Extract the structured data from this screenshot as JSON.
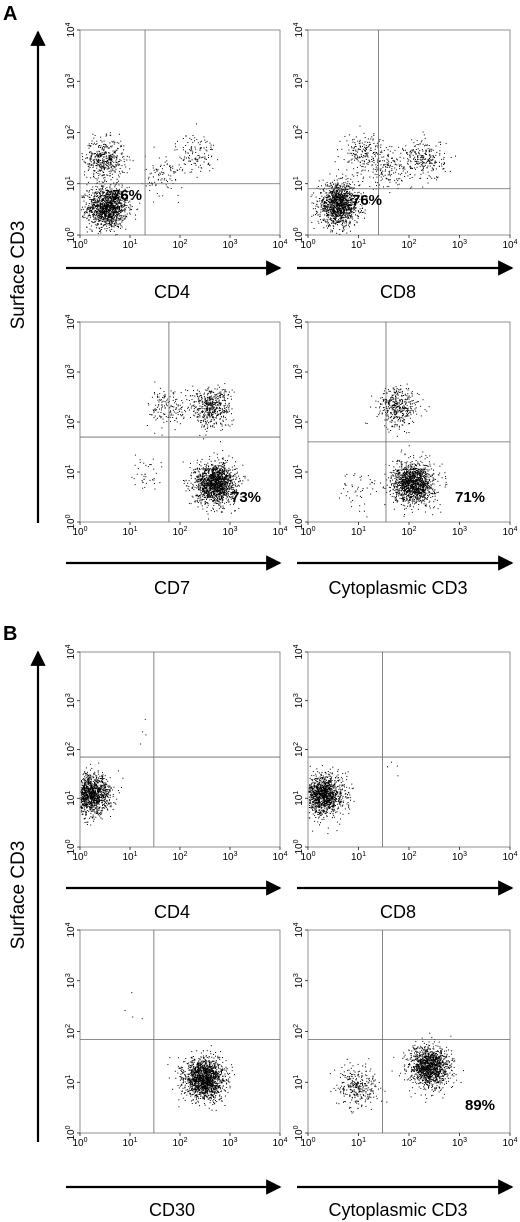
{
  "figure": {
    "panels": [
      {
        "letter": "A",
        "ylabel": "Surface CD3",
        "plots": [
          {
            "xlabel": "CD4",
            "annotation": "76%"
          },
          {
            "xlabel": "CD8",
            "annotation": "76%"
          },
          {
            "xlabel": "CD7",
            "annotation": "73%"
          },
          {
            "xlabel": "Cytoplasmic CD3",
            "annotation": "71%"
          }
        ]
      },
      {
        "letter": "B",
        "ylabel": "Surface CD3",
        "plots": [
          {
            "xlabel": "CD4",
            "annotation": ""
          },
          {
            "xlabel": "CD8",
            "annotation": ""
          },
          {
            "xlabel": "CD30",
            "annotation": ""
          },
          {
            "xlabel": "Cytoplasmic CD3",
            "annotation": "89%"
          }
        ]
      }
    ]
  },
  "chart_data": [
    {
      "type": "scatter",
      "panel": "A",
      "xlabel": "CD4",
      "ylabel": "Surface CD3",
      "scale": "log",
      "xlim": [
        1,
        10000
      ],
      "ylim": [
        1,
        10000
      ],
      "tick_labels": [
        "10^0",
        "10^1",
        "10^2",
        "10^3",
        "10^4"
      ],
      "quadrant_gate": {
        "x": 20,
        "y": 10
      },
      "annotation": "76%",
      "clusters": [
        {
          "cx": 3.5,
          "cy": 3.5,
          "n": 1300
        },
        {
          "cx": 3,
          "cy": 30,
          "n": 450
        },
        {
          "cx": 200,
          "cy": 40,
          "n": 120
        },
        {
          "cx": 50,
          "cy": 15,
          "n": 100
        }
      ]
    },
    {
      "type": "scatter",
      "panel": "A",
      "xlabel": "CD8",
      "ylabel": "Surface CD3",
      "scale": "log",
      "xlim": [
        1,
        10000
      ],
      "ylim": [
        1,
        10000
      ],
      "tick_labels": [
        "10^0",
        "10^1",
        "10^2",
        "10^3",
        "10^4"
      ],
      "quadrant_gate": {
        "x": 25,
        "y": 8
      },
      "annotation": "76%",
      "clusters": [
        {
          "cx": 4,
          "cy": 4,
          "n": 1300
        },
        {
          "cx": 12,
          "cy": 40,
          "n": 200
        },
        {
          "cx": 200,
          "cy": 30,
          "n": 250
        },
        {
          "cx": 40,
          "cy": 20,
          "n": 150
        }
      ]
    },
    {
      "type": "scatter",
      "panel": "A",
      "xlabel": "CD7",
      "ylabel": "Surface CD3",
      "scale": "log",
      "xlim": [
        1,
        10000
      ],
      "ylim": [
        1,
        10000
      ],
      "tick_labels": [
        "10^0",
        "10^1",
        "10^2",
        "10^3",
        "10^4"
      ],
      "quadrant_gate": {
        "x": 60,
        "y": 50
      },
      "annotation": "73%",
      "clusters": [
        {
          "cx": 500,
          "cy": 6,
          "n": 1500
        },
        {
          "cx": 400,
          "cy": 200,
          "n": 500
        },
        {
          "cx": 60,
          "cy": 200,
          "n": 150
        },
        {
          "cx": 20,
          "cy": 10,
          "n": 40
        }
      ]
    },
    {
      "type": "scatter",
      "panel": "A",
      "xlabel": "Cytoplasmic CD3",
      "ylabel": "Surface CD3",
      "scale": "log",
      "xlim": [
        1,
        10000
      ],
      "ylim": [
        1,
        10000
      ],
      "tick_labels": [
        "10^0",
        "10^1",
        "10^2",
        "10^3",
        "10^4"
      ],
      "quadrant_gate": {
        "x": 35,
        "y": 40
      },
      "annotation": "71%",
      "clusters": [
        {
          "cx": 120,
          "cy": 6,
          "n": 1400
        },
        {
          "cx": 60,
          "cy": 200,
          "n": 400
        },
        {
          "cx": 10,
          "cy": 5,
          "n": 50
        }
      ]
    },
    {
      "type": "scatter",
      "panel": "B",
      "xlabel": "CD4",
      "ylabel": "Surface CD3",
      "scale": "log",
      "xlim": [
        1,
        10000
      ],
      "ylim": [
        1,
        10000
      ],
      "tick_labels": [
        "10^0",
        "10^1",
        "10^2",
        "10^3",
        "10^4"
      ],
      "quadrant_gate": {
        "x": 30,
        "y": 70
      },
      "annotation": "",
      "clusters": [
        {
          "cx": 1.6,
          "cy": 12,
          "n": 1300
        },
        {
          "cx": 30,
          "cy": 200,
          "n": 4
        }
      ]
    },
    {
      "type": "scatter",
      "panel": "B",
      "xlabel": "CD8",
      "ylabel": "Surface CD3",
      "scale": "log",
      "xlim": [
        1,
        10000
      ],
      "ylim": [
        1,
        10000
      ],
      "tick_labels": [
        "10^0",
        "10^1",
        "10^2",
        "10^3",
        "10^4"
      ],
      "quadrant_gate": {
        "x": 30,
        "y": 70
      },
      "annotation": "",
      "clusters": [
        {
          "cx": 2,
          "cy": 12,
          "n": 1300
        },
        {
          "cx": 60,
          "cy": 50,
          "n": 4
        }
      ]
    },
    {
      "type": "scatter",
      "panel": "B",
      "xlabel": "CD30",
      "ylabel": "Surface CD3",
      "scale": "log",
      "xlim": [
        1,
        10000
      ],
      "ylim": [
        1,
        10000
      ],
      "tick_labels": [
        "10^0",
        "10^1",
        "10^2",
        "10^3",
        "10^4"
      ],
      "quadrant_gate": {
        "x": 30,
        "y": 70
      },
      "annotation": "",
      "clusters": [
        {
          "cx": 300,
          "cy": 12,
          "n": 1600
        },
        {
          "cx": 10,
          "cy": 300,
          "n": 4
        }
      ]
    },
    {
      "type": "scatter",
      "panel": "B",
      "xlabel": "Cytoplasmic CD3",
      "ylabel": "Surface CD3",
      "scale": "log",
      "xlim": [
        1,
        10000
      ],
      "ylim": [
        1,
        10000
      ],
      "tick_labels": [
        "10^0",
        "10^1",
        "10^2",
        "10^3",
        "10^4"
      ],
      "quadrant_gate": {
        "x": 30,
        "y": 70
      },
      "annotation": "89%",
      "clusters": [
        {
          "cx": 250,
          "cy": 20,
          "n": 1300
        },
        {
          "cx": 10,
          "cy": 8,
          "n": 300
        }
      ]
    }
  ]
}
